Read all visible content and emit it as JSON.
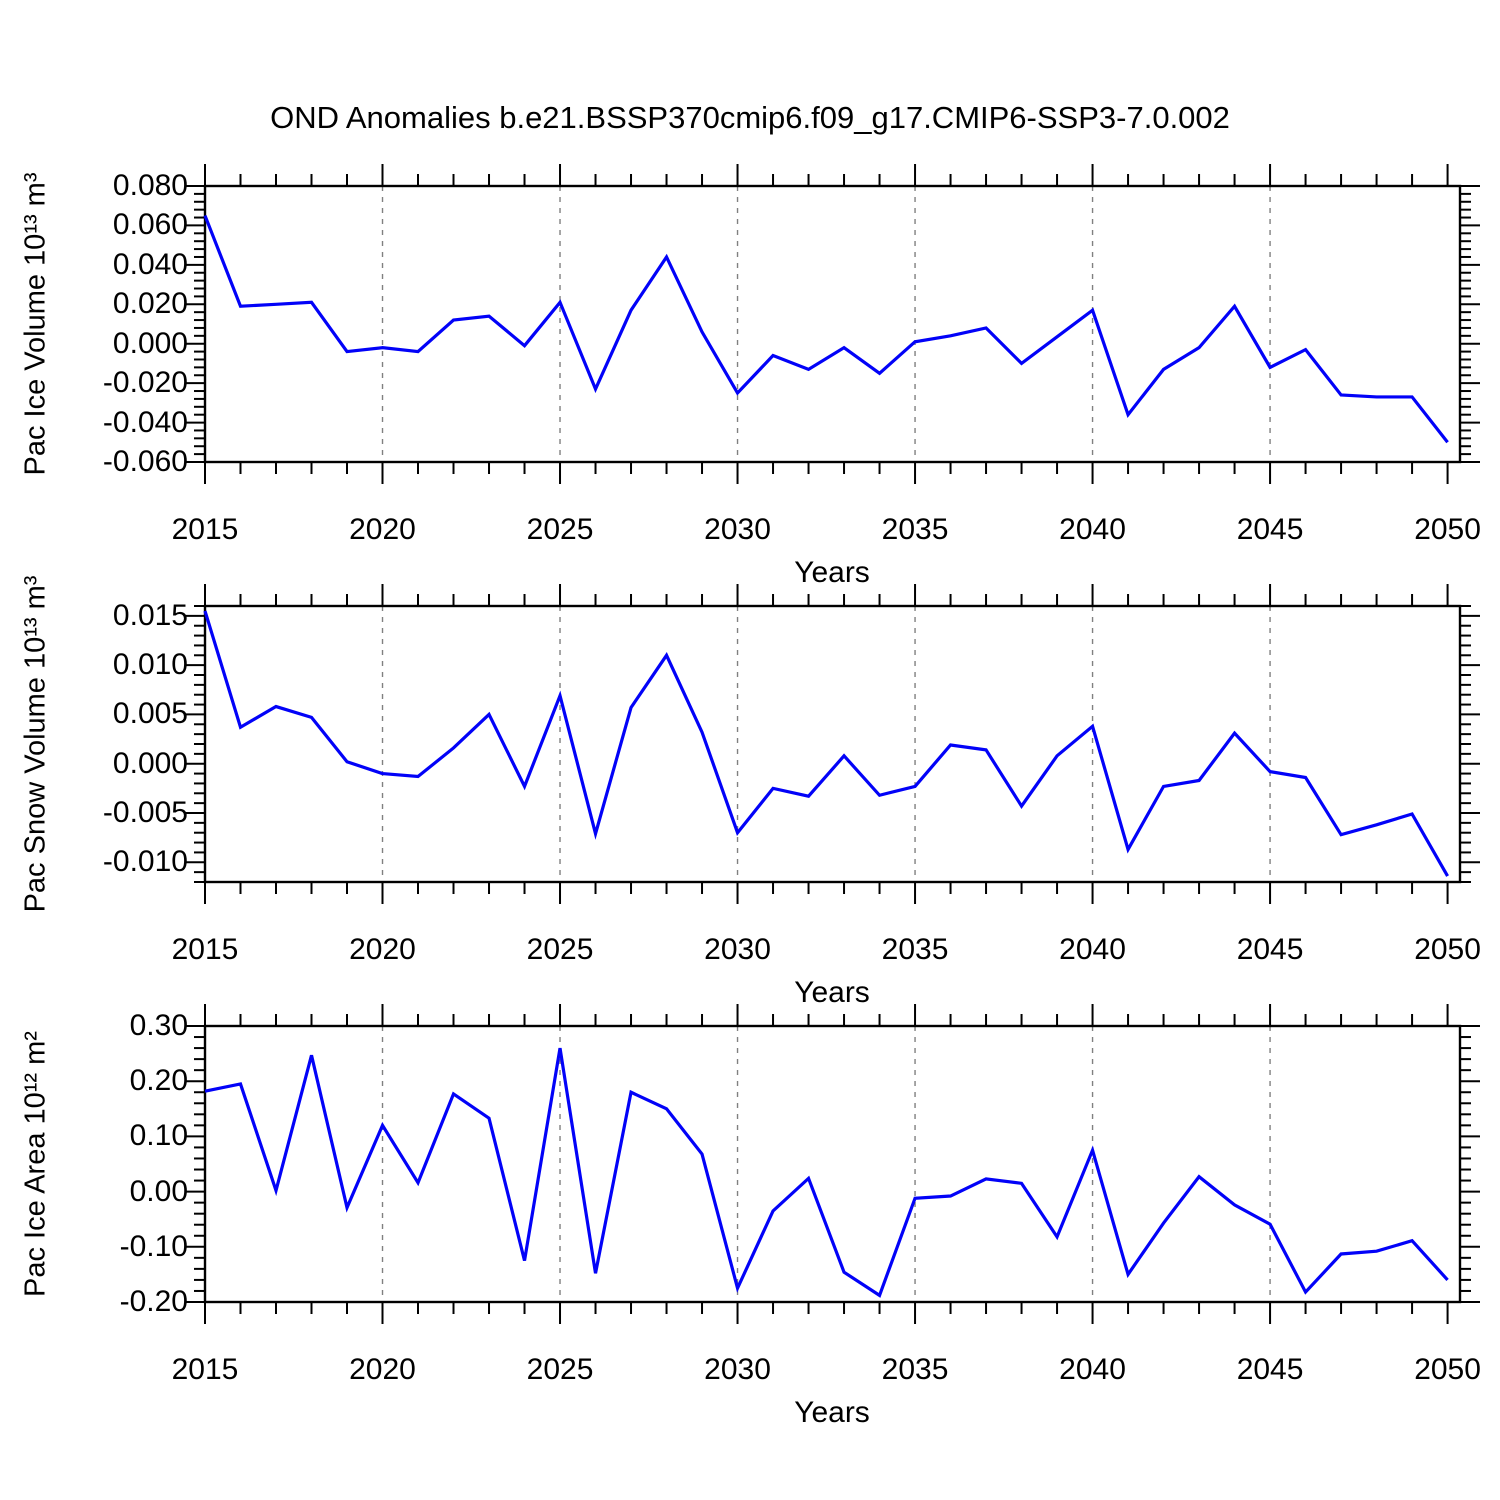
{
  "chart": {
    "title": "OND Anomalies b.e21.BSSP370cmip6.f09_g17.CMIP6-SSP3-7.0.002",
    "line_color": "#0202f8",
    "gridline_color": "#808080",
    "frame_color": "#000000"
  },
  "chart_data": [
    {
      "type": "line",
      "name": "pac-ice-volume",
      "ylabel": "Pac Ice Volume 10¹³ m³",
      "xlabel": "Years",
      "ylim": [
        -0.06,
        0.08
      ],
      "ytick_minor_step": 0.004,
      "grid": "vertical-dashed",
      "legend": "none",
      "yticks": [
        {
          "v": 0.08,
          "label": "0.080"
        },
        {
          "v": 0.06,
          "label": "0.060"
        },
        {
          "v": 0.04,
          "label": "0.040"
        },
        {
          "v": 0.02,
          "label": "0.020"
        },
        {
          "v": 0.0,
          "label": "0.000"
        },
        {
          "v": -0.02,
          "label": "-0.020"
        },
        {
          "v": -0.04,
          "label": "-0.040"
        },
        {
          "v": -0.06,
          "label": "-0.060"
        }
      ],
      "values": [
        0.065,
        0.019,
        0.02,
        0.021,
        -0.004,
        -0.002,
        -0.004,
        0.012,
        0.014,
        -0.001,
        0.021,
        -0.023,
        0.017,
        0.044,
        0.006,
        -0.025,
        -0.006,
        -0.013,
        -0.002,
        -0.015,
        0.001,
        0.004,
        0.008,
        -0.01,
        0.0035,
        0.017,
        -0.036,
        -0.013,
        -0.002,
        0.019,
        -0.012,
        -0.003,
        -0.026,
        -0.027,
        -0.027,
        -0.05
      ]
    },
    {
      "type": "line",
      "name": "pac-snow-volume",
      "ylabel": "Pac Snow Volume 10¹³ m³",
      "xlabel": "Years",
      "ylim": [
        -0.012,
        0.016
      ],
      "ytick_minor_step": 0.001,
      "grid": "vertical-dashed",
      "legend": "none",
      "yticks": [
        {
          "v": 0.015,
          "label": "0.015"
        },
        {
          "v": 0.01,
          "label": "0.010"
        },
        {
          "v": 0.005,
          "label": "0.005"
        },
        {
          "v": 0.0,
          "label": "0.000"
        },
        {
          "v": -0.005,
          "label": "-0.005"
        },
        {
          "v": -0.01,
          "label": "-0.010"
        }
      ],
      "values": [
        0.0155,
        0.0037,
        0.0058,
        0.0047,
        0.0002,
        -0.001,
        -0.0013,
        0.0016,
        0.005,
        -0.0023,
        0.0069,
        -0.0071,
        0.0057,
        0.011,
        0.0032,
        -0.007,
        -0.0025,
        -0.0033,
        0.0008,
        -0.0032,
        -0.0023,
        0.0019,
        0.0014,
        -0.0043,
        0.0008,
        0.0038,
        -0.0087,
        -0.0023,
        -0.0017,
        0.0031,
        -0.0008,
        -0.0014,
        -0.0072,
        -0.0062,
        -0.0051,
        -0.0114
      ]
    },
    {
      "type": "line",
      "name": "pac-ice-area",
      "ylabel": "Pac Ice Area 10¹² m²",
      "xlabel": "Years",
      "ylim": [
        -0.2,
        0.3
      ],
      "ytick_minor_step": 0.02,
      "grid": "vertical-dashed",
      "legend": "none",
      "yticks": [
        {
          "v": 0.3,
          "label": "0.30"
        },
        {
          "v": 0.2,
          "label": "0.20"
        },
        {
          "v": 0.1,
          "label": "0.10"
        },
        {
          "v": 0.0,
          "label": "0.00"
        },
        {
          "v": -0.1,
          "label": "-0.10"
        },
        {
          "v": -0.2,
          "label": "-0.20"
        }
      ],
      "values": [
        0.182,
        0.195,
        0.002,
        0.247,
        -0.029,
        0.12,
        0.016,
        0.177,
        0.133,
        -0.125,
        0.26,
        -0.148,
        0.18,
        0.15,
        0.068,
        -0.175,
        -0.035,
        0.024,
        -0.146,
        -0.188,
        -0.012,
        -0.008,
        0.023,
        0.015,
        -0.082,
        0.075,
        -0.15,
        -0.057,
        0.027,
        -0.024,
        -0.059,
        -0.182,
        -0.113,
        -0.108,
        -0.089,
        -0.16
      ]
    }
  ],
  "x_axis": {
    "years": [
      2015,
      2016,
      2017,
      2018,
      2019,
      2020,
      2021,
      2022,
      2023,
      2024,
      2025,
      2026,
      2027,
      2028,
      2029,
      2030,
      2031,
      2032,
      2033,
      2034,
      2035,
      2036,
      2037,
      2038,
      2039,
      2040,
      2041,
      2042,
      2043,
      2044,
      2045,
      2046,
      2047,
      2048,
      2049,
      2050
    ],
    "xlim": [
      2015,
      2050.35
    ],
    "major_ticks": [
      2015,
      2020,
      2025,
      2030,
      2035,
      2040,
      2045,
      2050
    ],
    "gridline_years": [
      2020,
      2025,
      2030,
      2035,
      2040,
      2045
    ]
  }
}
